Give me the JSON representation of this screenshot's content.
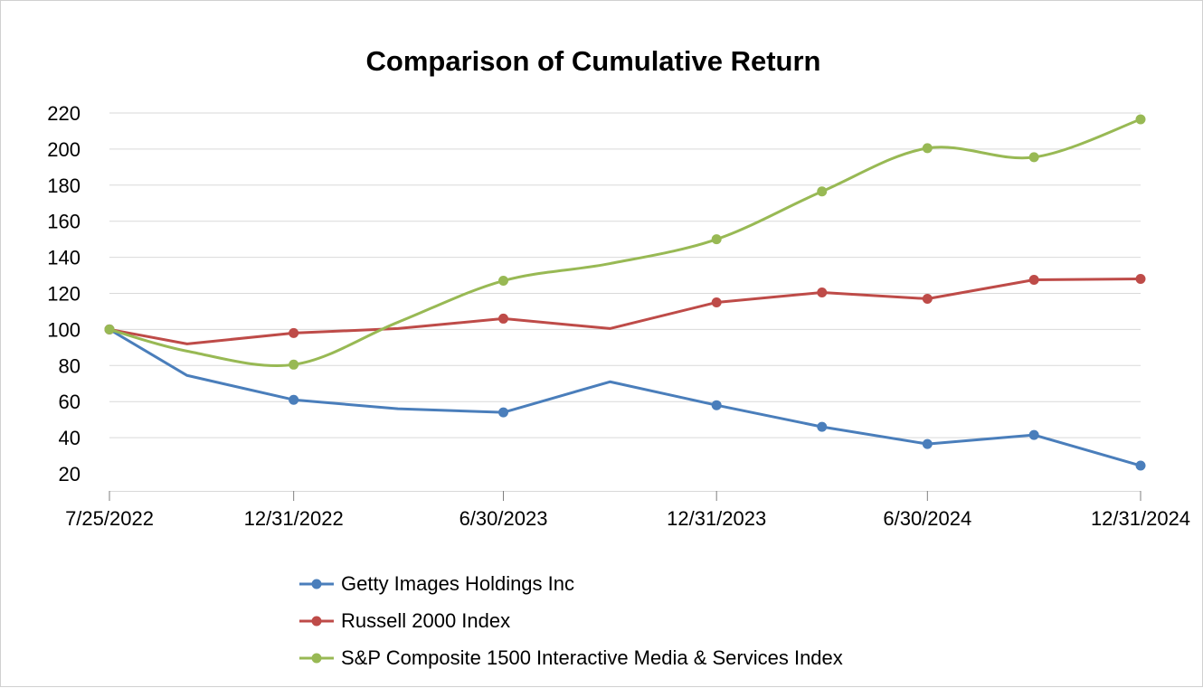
{
  "chart_data": {
    "type": "line",
    "title": "Comparison of Cumulative Return",
    "xlabel": "",
    "ylabel": "",
    "ylim": [
      20,
      220
    ],
    "y_ticks": [
      20,
      40,
      60,
      80,
      100,
      120,
      140,
      160,
      180,
      200,
      220
    ],
    "x_ticks": [
      "7/25/2022",
      "12/31/2022",
      "6/30/2023",
      "12/31/2023",
      "6/30/2024",
      "12/31/2024"
    ],
    "grid": true,
    "legend_position": "bottom",
    "x": [
      "7/25/2022",
      "9/30/2022",
      "12/31/2022",
      "3/31/2023",
      "6/30/2023",
      "9/30/2023",
      "12/31/2023",
      "3/31/2024",
      "6/30/2024",
      "9/30/2024",
      "12/31/2024"
    ],
    "series": [
      {
        "name": "Getty Images Holdings Inc",
        "color": "#4a7ebb",
        "smooth": false,
        "values": [
          100,
          74.5,
          61,
          56,
          54,
          71,
          58,
          46,
          36.5,
          41.5,
          24.5
        ],
        "markers": [
          true,
          false,
          true,
          false,
          true,
          false,
          true,
          true,
          true,
          true,
          true
        ]
      },
      {
        "name": "Russell 2000 Index",
        "color": "#be4b48",
        "smooth": false,
        "values": [
          100,
          92,
          98,
          100.5,
          106,
          100.5,
          115,
          120.5,
          117,
          127.5,
          128
        ],
        "markers": [
          true,
          false,
          true,
          false,
          true,
          false,
          true,
          true,
          true,
          true,
          true
        ]
      },
      {
        "name": "S&P Composite 1500 Interactive Media & Services Index",
        "color": "#98b954",
        "smooth": true,
        "values": [
          100,
          88,
          80.5,
          104,
          127,
          136.5,
          150,
          176.5,
          200.5,
          195.5,
          216.5
        ],
        "markers": [
          true,
          false,
          true,
          false,
          true,
          false,
          true,
          true,
          true,
          true,
          true
        ]
      }
    ]
  }
}
